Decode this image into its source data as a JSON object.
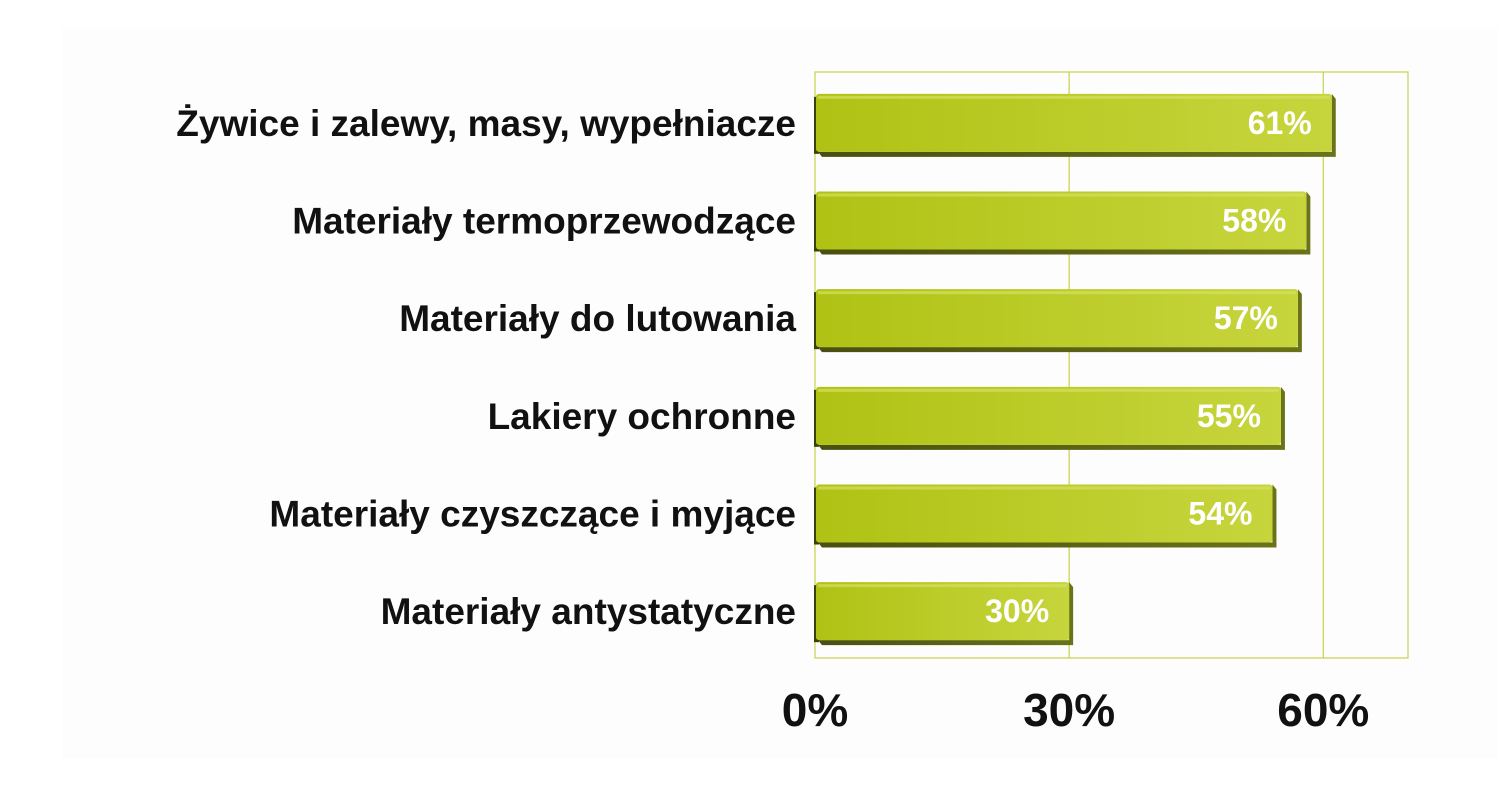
{
  "chart_data": {
    "type": "bar",
    "orientation": "horizontal",
    "categories": [
      "Żywice i zalewy, masy, wypełniacze",
      "Materiały termoprzewodzące",
      "Materiały do lutowania",
      "Lakiery ochronne",
      "Materiały czyszczące i myjące",
      "Materiały antystatyczne"
    ],
    "values": [
      61,
      58,
      57,
      55,
      54,
      30
    ],
    "value_labels": [
      "61%",
      "58%",
      "57%",
      "55%",
      "54%",
      "30%"
    ],
    "xlim": [
      0,
      70
    ],
    "x_ticks": [
      0,
      30,
      60
    ],
    "x_tick_labels": [
      "0%",
      "30%",
      "60%"
    ],
    "grid": true,
    "bar_color": "#b5c619",
    "grid_color": "#c8d24a"
  }
}
